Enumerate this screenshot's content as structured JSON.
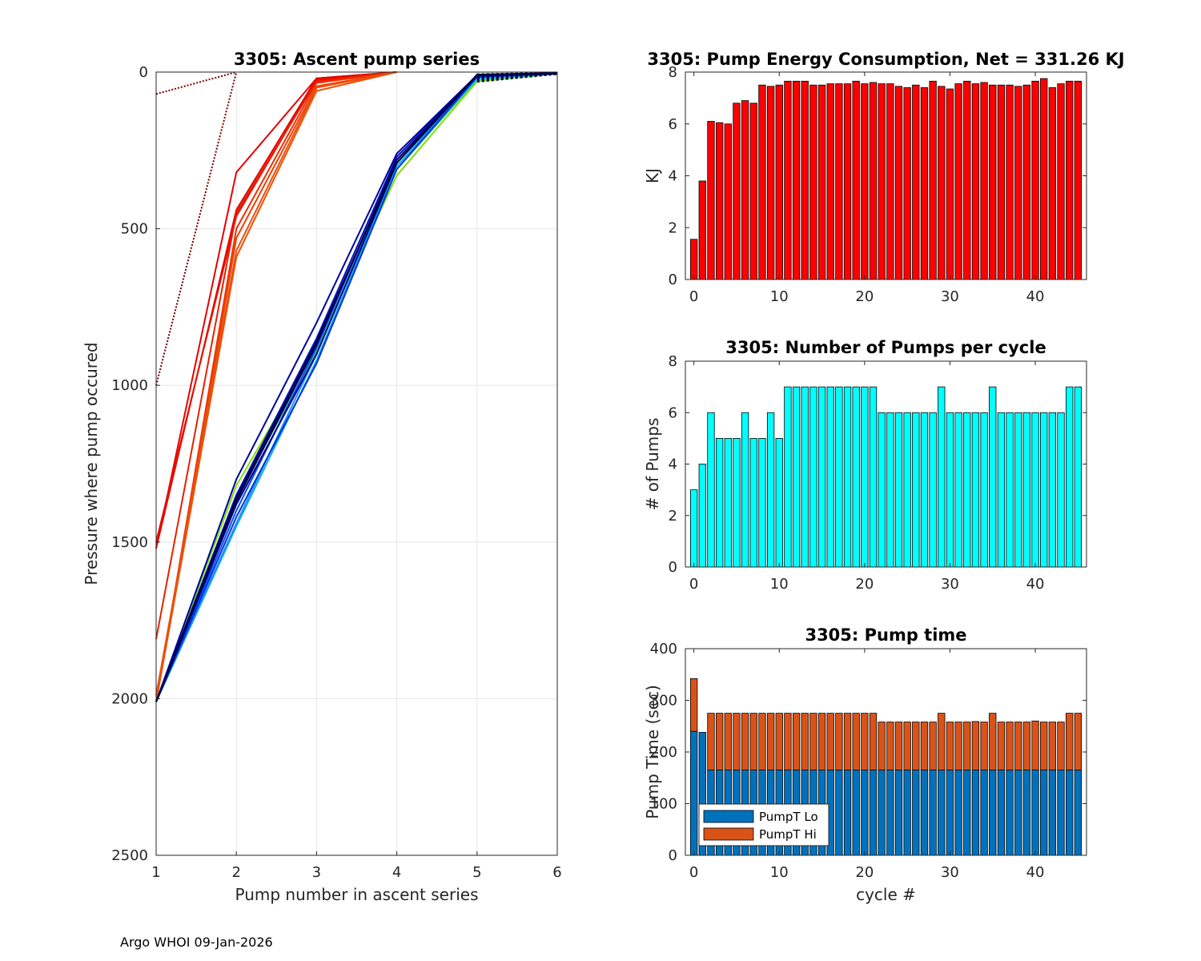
{
  "footer": "Argo WHOI 09-Jan-2026",
  "colors": {
    "energy_bar": "#ff0000",
    "pumps_bar": "#00ffff",
    "pumpt_lo": "#0072bd",
    "pumpt_hi": "#d95319"
  },
  "chart_data": [
    {
      "id": "ascent",
      "type": "line",
      "title": "3305: Ascent pump series",
      "xlabel": "Pump number in ascent series",
      "ylabel": "Pressure where pump occured",
      "xlim": [
        1,
        6
      ],
      "ylim": [
        0,
        2500
      ],
      "y_reversed": true,
      "grid": true,
      "xticks": [
        "1",
        "2",
        "3",
        "4",
        "5",
        "6"
      ],
      "yticks": [
        "0",
        "500",
        "1000",
        "1500",
        "2000",
        "2500"
      ],
      "series": [
        {
          "name": "c0",
          "color": "#7a0000",
          "dotted": true,
          "x": [
            1,
            2
          ],
          "y": [
            70,
            0
          ]
        },
        {
          "name": "c1",
          "color": "#7a0000",
          "dotted": true,
          "x": [
            1,
            2
          ],
          "y": [
            1000,
            0
          ]
        },
        {
          "name": "c2",
          "color": "#e60000",
          "x": [
            1,
            2,
            3,
            4
          ],
          "y": [
            1520,
            320,
            20,
            0
          ]
        },
        {
          "name": "c3",
          "color": "#e60000",
          "x": [
            1,
            2,
            3,
            4
          ],
          "y": [
            1520,
            440,
            20,
            0
          ]
        },
        {
          "name": "c4",
          "color": "#e61000",
          "x": [
            1,
            2,
            3,
            4
          ],
          "y": [
            1500,
            460,
            25,
            0
          ]
        },
        {
          "name": "c5",
          "color": "#e62000",
          "x": [
            1,
            2,
            3,
            4
          ],
          "y": [
            1810,
            450,
            30,
            0
          ]
        },
        {
          "name": "c6",
          "color": "#ee3000",
          "x": [
            1,
            2,
            3,
            4
          ],
          "y": [
            2010,
            500,
            35,
            0
          ]
        },
        {
          "name": "c7",
          "color": "#f04000",
          "x": [
            1,
            2,
            3,
            4
          ],
          "y": [
            2010,
            530,
            45,
            0
          ]
        },
        {
          "name": "c8",
          "color": "#f05000",
          "x": [
            1,
            2,
            3,
            4
          ],
          "y": [
            2010,
            590,
            60,
            0
          ]
        },
        {
          "name": "c9",
          "color": "#e85010",
          "x": [
            1,
            2,
            3,
            4
          ],
          "y": [
            1990,
            570,
            50,
            0
          ]
        },
        {
          "name": "c10",
          "color": "#80e000",
          "x": [
            1,
            2,
            3,
            4,
            5,
            6
          ],
          "y": [
            2010,
            1320,
            880,
            330,
            30,
            5
          ]
        },
        {
          "name": "c11",
          "color": "#40d080",
          "x": [
            1,
            2,
            3,
            4,
            5,
            6
          ],
          "y": [
            2010,
            1360,
            890,
            310,
            25,
            5
          ]
        },
        {
          "name": "c12",
          "color": "#00b0e0",
          "x": [
            1,
            2,
            3,
            4,
            5,
            6
          ],
          "y": [
            2010,
            1450,
            920,
            300,
            20,
            5
          ]
        },
        {
          "name": "c13",
          "color": "#2090ff",
          "x": [
            1,
            2,
            3,
            4,
            5,
            6
          ],
          "y": [
            2010,
            1440,
            900,
            290,
            18,
            5
          ]
        },
        {
          "name": "c14",
          "color": "#0050ff",
          "x": [
            1,
            2,
            3,
            4,
            5,
            6
          ],
          "y": [
            2010,
            1400,
            880,
            280,
            15,
            5
          ]
        },
        {
          "name": "c15",
          "color": "#0030e0",
          "x": [
            1,
            2,
            3,
            4,
            5,
            6
          ],
          "y": [
            2010,
            1420,
            930,
            310,
            15,
            5
          ]
        },
        {
          "name": "c16",
          "color": "#0010c0",
          "x": [
            1,
            2,
            3,
            4,
            5,
            6
          ],
          "y": [
            2010,
            1350,
            850,
            270,
            10,
            5
          ]
        },
        {
          "name": "c17",
          "color": "#0000a0",
          "x": [
            1,
            2,
            3,
            4,
            5,
            6
          ],
          "y": [
            2010,
            1300,
            800,
            260,
            10,
            5
          ]
        },
        {
          "name": "c18",
          "color": "#000080",
          "x": [
            1,
            2,
            3,
            4,
            5,
            6
          ],
          "y": [
            2010,
            1380,
            900,
            290,
            12,
            5
          ]
        },
        {
          "name": "c19",
          "color": "#000060",
          "x": [
            1,
            2,
            3,
            4,
            5,
            6
          ],
          "y": [
            2010,
            1370,
            870,
            280,
            10,
            5
          ]
        },
        {
          "name": "c20",
          "color": "#000040",
          "x": [
            1,
            2,
            3,
            4,
            5,
            6
          ],
          "y": [
            2010,
            1360,
            860,
            290,
            8,
            3
          ]
        }
      ]
    },
    {
      "id": "energy",
      "type": "bar",
      "title": "3305: Pump Energy Consumption,  Net = 331.26 KJ",
      "xlabel": "",
      "ylabel": "KJ",
      "xlim": [
        -1,
        46
      ],
      "ylim": [
        0,
        8
      ],
      "xticks": [
        "0",
        "10",
        "20",
        "30",
        "40"
      ],
      "yticks": [
        "0",
        "2",
        "4",
        "6",
        "8"
      ],
      "categories": [
        0,
        1,
        2,
        3,
        4,
        5,
        6,
        7,
        8,
        9,
        10,
        11,
        12,
        13,
        14,
        15,
        16,
        17,
        18,
        19,
        20,
        21,
        22,
        23,
        24,
        25,
        26,
        27,
        28,
        29,
        30,
        31,
        32,
        33,
        34,
        35,
        36,
        37,
        38,
        39,
        40,
        41,
        42,
        43,
        44,
        45
      ],
      "values": [
        1.55,
        3.8,
        6.1,
        6.05,
        6.0,
        6.8,
        6.9,
        6.8,
        7.5,
        7.45,
        7.5,
        7.65,
        7.65,
        7.65,
        7.5,
        7.5,
        7.55,
        7.55,
        7.55,
        7.65,
        7.55,
        7.6,
        7.55,
        7.55,
        7.45,
        7.4,
        7.5,
        7.4,
        7.65,
        7.45,
        7.35,
        7.55,
        7.65,
        7.55,
        7.6,
        7.5,
        7.5,
        7.5,
        7.45,
        7.5,
        7.65,
        7.75,
        7.4,
        7.55,
        7.65,
        7.65
      ]
    },
    {
      "id": "pumps",
      "type": "bar",
      "title": "3305: Number of Pumps per cycle",
      "xlabel": "",
      "ylabel": "# of Pumps",
      "xlim": [
        -1,
        46
      ],
      "ylim": [
        0,
        8
      ],
      "xticks": [
        "0",
        "10",
        "20",
        "30",
        "40"
      ],
      "yticks": [
        "0",
        "2",
        "4",
        "6",
        "8"
      ],
      "categories": [
        0,
        1,
        2,
        3,
        4,
        5,
        6,
        7,
        8,
        9,
        10,
        11,
        12,
        13,
        14,
        15,
        16,
        17,
        18,
        19,
        20,
        21,
        22,
        23,
        24,
        25,
        26,
        27,
        28,
        29,
        30,
        31,
        32,
        33,
        34,
        35,
        36,
        37,
        38,
        39,
        40,
        41,
        42,
        43,
        44,
        45
      ],
      "values": [
        3,
        4,
        6,
        5,
        5,
        5,
        6,
        5,
        5,
        6,
        5,
        7,
        7,
        7,
        7,
        7,
        7,
        7,
        7,
        7,
        7,
        7,
        6,
        6,
        6,
        6,
        6,
        6,
        6,
        7,
        6,
        6,
        6,
        6,
        6,
        7,
        6,
        6,
        6,
        6,
        6,
        6,
        6,
        6,
        7,
        7
      ]
    },
    {
      "id": "pumptime",
      "type": "bar",
      "stacked": true,
      "title": "3305: Pump time",
      "xlabel": "cycle #",
      "ylabel": "Pump Time (sec)",
      "xlim": [
        -1,
        46
      ],
      "ylim": [
        0,
        400
      ],
      "xticks": [
        "0",
        "10",
        "20",
        "30",
        "40"
      ],
      "yticks": [
        "0",
        "100",
        "200",
        "300",
        "400"
      ],
      "categories": [
        0,
        1,
        2,
        3,
        4,
        5,
        6,
        7,
        8,
        9,
        10,
        11,
        12,
        13,
        14,
        15,
        16,
        17,
        18,
        19,
        20,
        21,
        22,
        23,
        24,
        25,
        26,
        27,
        28,
        29,
        30,
        31,
        32,
        33,
        34,
        35,
        36,
        37,
        38,
        39,
        40,
        41,
        42,
        43,
        44,
        45
      ],
      "legend": [
        "PumpT Lo",
        "PumpT Hi"
      ],
      "legend_position": "bottom-left",
      "series": [
        {
          "name": "PumpT Lo",
          "values": [
            240,
            238,
            165,
            165,
            165,
            165,
            165,
            165,
            165,
            165,
            165,
            165,
            165,
            165,
            165,
            165,
            165,
            165,
            165,
            165,
            165,
            165,
            165,
            165,
            165,
            165,
            165,
            165,
            165,
            165,
            165,
            165,
            165,
            165,
            165,
            165,
            165,
            165,
            165,
            165,
            165,
            165,
            165,
            165,
            165,
            165
          ]
        },
        {
          "name": "PumpT Hi",
          "values": [
            102,
            0,
            110,
            110,
            110,
            110,
            110,
            110,
            110,
            110,
            110,
            110,
            110,
            110,
            110,
            110,
            110,
            110,
            110,
            110,
            110,
            110,
            93,
            93,
            93,
            93,
            93,
            93,
            93,
            110,
            93,
            93,
            93,
            94,
            93,
            110,
            93,
            93,
            93,
            93,
            95,
            93,
            93,
            93,
            110,
            110
          ]
        }
      ]
    }
  ]
}
